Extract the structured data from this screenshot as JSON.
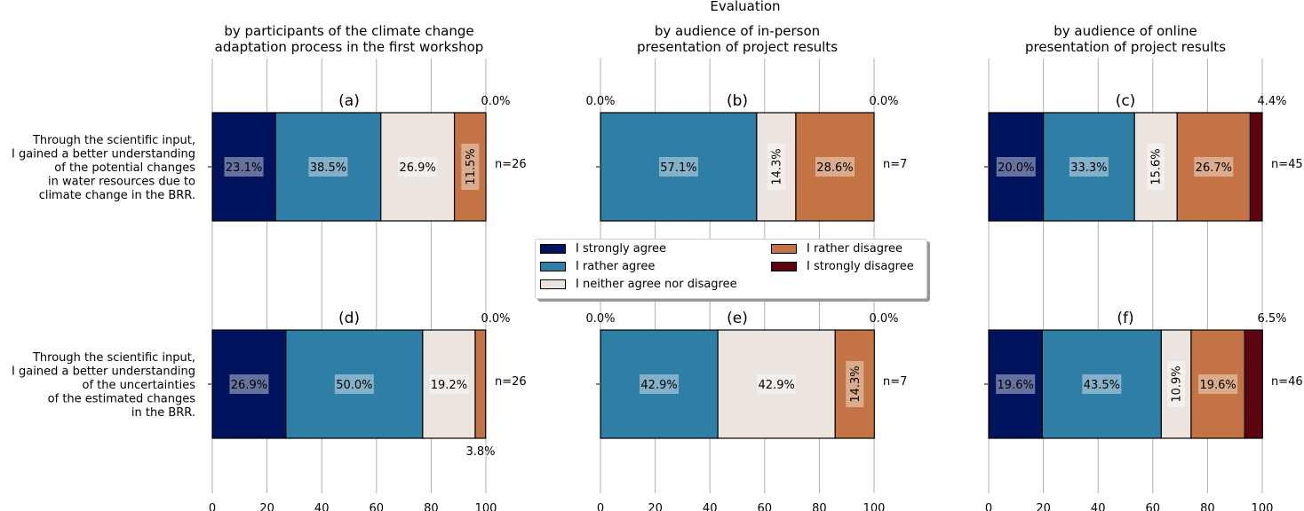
{
  "chart_data": {
    "type": "bar",
    "orientation": "horizontal-stacked",
    "title": "Evaluation",
    "xlim": [
      0,
      100
    ],
    "xticks": [
      "0",
      "20",
      "40",
      "60",
      "80",
      "100"
    ],
    "grid": "vertical",
    "legend_placement": "center",
    "categories_legend": [
      "I strongly agree",
      "I rather agree",
      "I neither agree nor disagree",
      "I rather disagree",
      "I strongly disagree"
    ],
    "colors": [
      "#02135e",
      "#2f7ea6",
      "#ece4df",
      "#c47444",
      "#5c0510"
    ],
    "columns": [
      {
        "title_line1": "by participants of the climate change",
        "title_line2": "adaptation process in the first workshop"
      },
      {
        "title_line1": "by audience of in-person",
        "title_line2": "presentation of project results"
      },
      {
        "title_line1": "by audience of online",
        "title_line2": "presentation of project results"
      }
    ],
    "rows": [
      {
        "label": [
          "Through the scientific input,",
          "I gained a better understanding",
          "of the potential changes",
          "in water resources due to",
          "climate change in the BRR."
        ]
      },
      {
        "label": [
          "Through the scientific input,",
          "I gained a better understanding",
          "of the uncertainties",
          "of the estimated changes",
          "in the BRR."
        ]
      }
    ],
    "panels": [
      {
        "id": "(a)",
        "values": [
          23.1,
          38.5,
          26.9,
          11.5,
          0.0
        ],
        "n": "n=26"
      },
      {
        "id": "(b)",
        "values": [
          0.0,
          57.1,
          14.3,
          28.6,
          0.0
        ],
        "n": "n=7"
      },
      {
        "id": "(c)",
        "values": [
          20.0,
          33.3,
          15.6,
          26.7,
          4.4
        ],
        "n": "n=45"
      },
      {
        "id": "(d)",
        "values": [
          26.9,
          50.0,
          19.2,
          3.8,
          0.0
        ],
        "n": "n=26"
      },
      {
        "id": "(e)",
        "values": [
          0.0,
          42.9,
          42.9,
          14.3,
          0.0
        ],
        "n": "n=7"
      },
      {
        "id": "(f)",
        "values": [
          19.6,
          43.5,
          10.9,
          19.6,
          6.5
        ],
        "n": "n=46"
      }
    ]
  }
}
